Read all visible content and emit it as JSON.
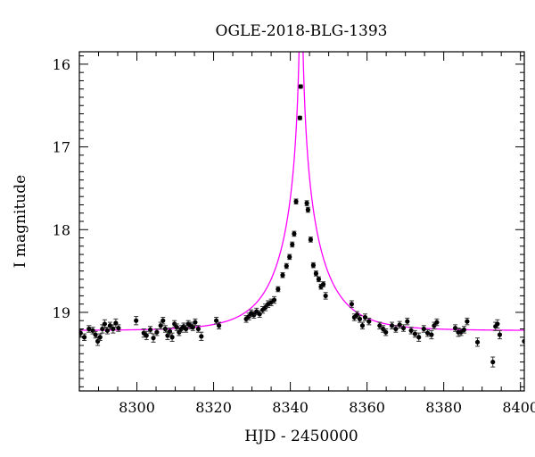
{
  "chart_data": {
    "type": "scatter",
    "title": "OGLE-2018-BLG-1393",
    "xlabel": "HJD - 2450000",
    "ylabel": "I magnitude",
    "xlim": [
      8285,
      8401
    ],
    "ylim": [
      19.95,
      15.85
    ],
    "y_inverted": true,
    "xticks": [
      8300,
      8320,
      8340,
      8360,
      8380,
      8400
    ],
    "yticks": [
      16,
      17,
      18,
      19
    ],
    "grid": false,
    "colors": {
      "model": "#ff00ff",
      "points": "#000000"
    },
    "series": [
      {
        "kind": "model",
        "params": {
          "t0": 8342.8,
          "tE": 12.0,
          "u0": 0.01,
          "base_mag": 19.22
        }
      },
      {
        "kind": "observations",
        "points": [
          [
            8285.3,
            19.25,
            0.04
          ],
          [
            8286.3,
            19.3,
            0.04
          ],
          [
            8287.5,
            19.2,
            0.04
          ],
          [
            8288.5,
            19.22,
            0.04
          ],
          [
            8289.2,
            19.27,
            0.04
          ],
          [
            8289.8,
            19.35,
            0.05
          ],
          [
            8290.4,
            19.3,
            0.04
          ],
          [
            8291.0,
            19.2,
            0.05
          ],
          [
            8291.6,
            19.14,
            0.05
          ],
          [
            8292.3,
            19.22,
            0.04
          ],
          [
            8293.0,
            19.16,
            0.04
          ],
          [
            8293.8,
            19.2,
            0.05
          ],
          [
            8294.5,
            19.13,
            0.05
          ],
          [
            8295.2,
            19.19,
            0.04
          ],
          [
            8299.8,
            19.1,
            0.05
          ],
          [
            8301.8,
            19.25,
            0.05
          ],
          [
            8302.5,
            19.28,
            0.05
          ],
          [
            8303.5,
            19.21,
            0.04
          ],
          [
            8304.3,
            19.31,
            0.05
          ],
          [
            8305.2,
            19.24,
            0.04
          ],
          [
            8306.2,
            19.16,
            0.04
          ],
          [
            8306.8,
            19.1,
            0.04
          ],
          [
            8307.4,
            19.2,
            0.04
          ],
          [
            8308.0,
            19.28,
            0.05
          ],
          [
            8308.6,
            19.23,
            0.04
          ],
          [
            8309.2,
            19.3,
            0.05
          ],
          [
            8309.8,
            19.14,
            0.04
          ],
          [
            8310.4,
            19.18,
            0.04
          ],
          [
            8311.0,
            19.24,
            0.04
          ],
          [
            8311.6,
            19.2,
            0.04
          ],
          [
            8312.2,
            19.17,
            0.04
          ],
          [
            8312.8,
            19.2,
            0.04
          ],
          [
            8313.4,
            19.14,
            0.04
          ],
          [
            8314.0,
            19.16,
            0.04
          ],
          [
            8314.6,
            19.18,
            0.04
          ],
          [
            8315.2,
            19.12,
            0.04
          ],
          [
            8316.0,
            19.2,
            0.04
          ],
          [
            8316.8,
            19.29,
            0.05
          ],
          [
            8320.7,
            19.1,
            0.04
          ],
          [
            8321.4,
            19.16,
            0.04
          ],
          [
            8328.5,
            19.08,
            0.04
          ],
          [
            8329.2,
            19.05,
            0.04
          ],
          [
            8329.8,
            19.01,
            0.04
          ],
          [
            8330.5,
            19.03,
            0.04
          ],
          [
            8331.2,
            18.99,
            0.04
          ],
          [
            8332.0,
            19.02,
            0.04
          ],
          [
            8332.8,
            18.97,
            0.04
          ],
          [
            8333.5,
            18.94,
            0.04
          ],
          [
            8334.2,
            18.9,
            0.04
          ],
          [
            8335.0,
            18.88,
            0.04
          ],
          [
            8335.8,
            18.85,
            0.04
          ],
          [
            8336.8,
            18.72,
            0.03
          ],
          [
            8338.0,
            18.55,
            0.03
          ],
          [
            8339.0,
            18.44,
            0.03
          ],
          [
            8339.8,
            18.33,
            0.03
          ],
          [
            8340.5,
            18.18,
            0.03
          ],
          [
            8341.0,
            18.05,
            0.03
          ],
          [
            8341.5,
            17.66,
            0.03
          ],
          [
            8342.5,
            16.65,
            0.02
          ],
          [
            8342.7,
            16.27,
            0.02
          ],
          [
            8344.3,
            17.68,
            0.03
          ],
          [
            8344.6,
            17.76,
            0.03
          ],
          [
            8345.3,
            18.12,
            0.03
          ],
          [
            8346.0,
            18.43,
            0.03
          ],
          [
            8346.7,
            18.53,
            0.03
          ],
          [
            8347.4,
            18.6,
            0.03
          ],
          [
            8348.0,
            18.69,
            0.03
          ],
          [
            8348.6,
            18.66,
            0.03
          ],
          [
            8349.2,
            18.8,
            0.04
          ],
          [
            8356.0,
            18.9,
            0.04
          ],
          [
            8356.7,
            19.06,
            0.04
          ],
          [
            8357.4,
            19.03,
            0.04
          ],
          [
            8358.1,
            19.08,
            0.04
          ],
          [
            8358.8,
            19.16,
            0.04
          ],
          [
            8359.5,
            19.06,
            0.04
          ],
          [
            8360.5,
            19.11,
            0.04
          ],
          [
            8363.3,
            19.16,
            0.04
          ],
          [
            8364.2,
            19.2,
            0.04
          ],
          [
            8364.9,
            19.24,
            0.04
          ],
          [
            8366.5,
            19.16,
            0.04
          ],
          [
            8367.5,
            19.2,
            0.04
          ],
          [
            8368.5,
            19.15,
            0.04
          ],
          [
            8369.5,
            19.19,
            0.04
          ],
          [
            8370.5,
            19.11,
            0.04
          ],
          [
            8371.5,
            19.22,
            0.04
          ],
          [
            8372.5,
            19.26,
            0.04
          ],
          [
            8373.5,
            19.3,
            0.05
          ],
          [
            8374.8,
            19.2,
            0.04
          ],
          [
            8375.8,
            19.25,
            0.04
          ],
          [
            8376.8,
            19.27,
            0.05
          ],
          [
            8377.5,
            19.16,
            0.04
          ],
          [
            8378.2,
            19.12,
            0.04
          ],
          [
            8383.0,
            19.19,
            0.04
          ],
          [
            8383.8,
            19.24,
            0.05
          ],
          [
            8384.5,
            19.24,
            0.04
          ],
          [
            8385.3,
            19.21,
            0.04
          ],
          [
            8386.1,
            19.11,
            0.04
          ],
          [
            8388.8,
            19.36,
            0.05
          ],
          [
            8392.8,
            19.6,
            0.06
          ],
          [
            8393.5,
            19.17,
            0.05
          ],
          [
            8394.0,
            19.14,
            0.05
          ],
          [
            8394.6,
            19.27,
            0.05
          ],
          [
            8401.0,
            19.35,
            0.05
          ]
        ]
      }
    ]
  }
}
